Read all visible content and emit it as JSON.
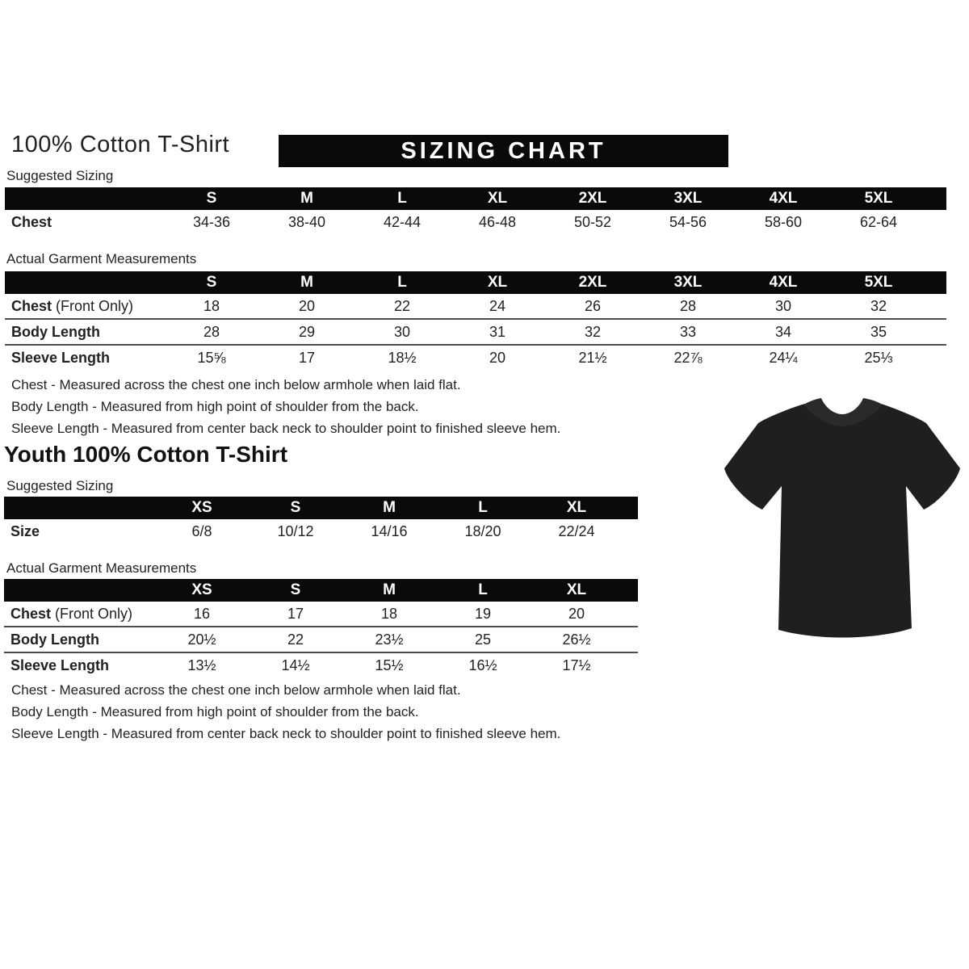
{
  "page": {
    "title": "100% Cotton T-Shirt",
    "banner": "SIZING CHART"
  },
  "adult": {
    "suggested_label": "Suggested Sizing",
    "suggested": {
      "columns": [
        "S",
        "M",
        "L",
        "XL",
        "2XL",
        "3XL",
        "4XL",
        "5XL"
      ],
      "row_borders": false,
      "rows": [
        {
          "label": "Chest",
          "label_suffix": "",
          "values": [
            "34-36",
            "38-40",
            "42-44",
            "46-48",
            "50-52",
            "54-56",
            "58-60",
            "62-64"
          ]
        }
      ]
    },
    "actual_label": "Actual Garment Measurements",
    "actual": {
      "columns": [
        "S",
        "M",
        "L",
        "XL",
        "2XL",
        "3XL",
        "4XL",
        "5XL"
      ],
      "row_borders": true,
      "rows": [
        {
          "label": "Chest",
          "label_suffix": " (Front Only)",
          "values": [
            "18",
            "20",
            "22",
            "24",
            "26",
            "28",
            "30",
            "32"
          ]
        },
        {
          "label": "Body Length",
          "label_suffix": "",
          "values": [
            "28",
            "29",
            "30",
            "31",
            "32",
            "33",
            "34",
            "35"
          ]
        },
        {
          "label": "Sleeve Length",
          "label_suffix": "",
          "values": [
            "15⅝",
            "17",
            "18½",
            "20",
            "21½",
            "22⅞",
            "24¼",
            "25⅓"
          ]
        }
      ]
    },
    "notes": [
      "Chest - Measured across the chest one inch below armhole when laid flat.",
      "Body Length - Measured from high point of shoulder from the back.",
      "Sleeve Length - Measured from center back neck to shoulder point to finished sleeve hem."
    ]
  },
  "youth": {
    "title": "Youth 100% Cotton T-Shirt",
    "suggested_label": "Suggested Sizing",
    "suggested": {
      "columns": [
        "XS",
        "S",
        "M",
        "L",
        "XL"
      ],
      "row_borders": false,
      "rows": [
        {
          "label": "Size",
          "label_suffix": "",
          "values": [
            "6/8",
            "10/12",
            "14/16",
            "18/20",
            "22/24"
          ]
        }
      ]
    },
    "actual_label": "Actual Garment Measurements",
    "actual": {
      "columns": [
        "XS",
        "S",
        "M",
        "L",
        "XL"
      ],
      "row_borders": true,
      "rows": [
        {
          "label": "Chest",
          "label_suffix": " (Front Only)",
          "values": [
            "16",
            "17",
            "18",
            "19",
            "20"
          ]
        },
        {
          "label": "Body Length",
          "label_suffix": "",
          "values": [
            "20½",
            "22",
            "23½",
            "25",
            "26½"
          ]
        },
        {
          "label": "Sleeve Length",
          "label_suffix": "",
          "values": [
            "13½",
            "14½",
            "15½",
            "16½",
            "17½"
          ]
        }
      ]
    },
    "notes": [
      "Chest - Measured across the chest one inch below armhole when laid flat.",
      "Body Length - Measured from high point of shoulder from the back.",
      "Sleeve Length - Measured from center back neck to shoulder point to finished sleeve hem."
    ]
  },
  "tshirt_image": {
    "label": "black-tshirt-photo",
    "shirt_color": "#1f1f1f",
    "collar_color": "#2a2a2a"
  }
}
